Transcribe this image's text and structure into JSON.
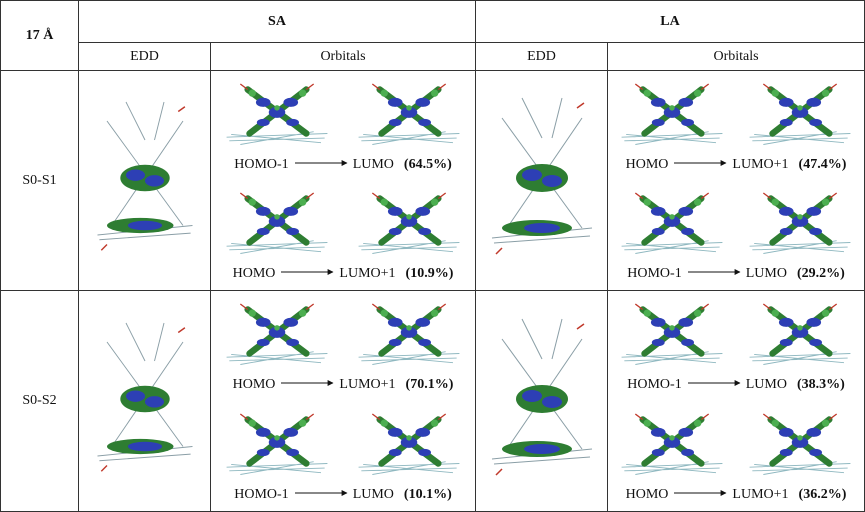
{
  "header": {
    "corner": "17 Å",
    "groups": [
      "SA",
      "LA"
    ],
    "columns": [
      "EDD",
      "Orbitals",
      "EDD",
      "Orbitals"
    ]
  },
  "rows": [
    {
      "label": "S0-S1",
      "sa": [
        {
          "from": "HOMO-1",
          "to": "LUMO",
          "percent": "(64.5%)"
        },
        {
          "from": "HOMO",
          "to": "LUMO+1",
          "percent": "(10.9%)"
        }
      ],
      "la": [
        {
          "from": "HOMO",
          "to": "LUMO+1",
          "percent": "(47.4%)"
        },
        {
          "from": "HOMO-1",
          "to": "LUMO",
          "percent": "(29.2%)"
        }
      ]
    },
    {
      "label": "S0-S2",
      "sa": [
        {
          "from": "HOMO",
          "to": "LUMO+1",
          "percent": "(70.1%)"
        },
        {
          "from": "HOMO-1",
          "to": "LUMO",
          "percent": "(10.1%)"
        }
      ],
      "la": [
        {
          "from": "HOMO-1",
          "to": "LUMO",
          "percent": "(38.3%)"
        },
        {
          "from": "HOMO",
          "to": "LUMO+1",
          "percent": "(36.2%)"
        }
      ]
    }
  ]
}
